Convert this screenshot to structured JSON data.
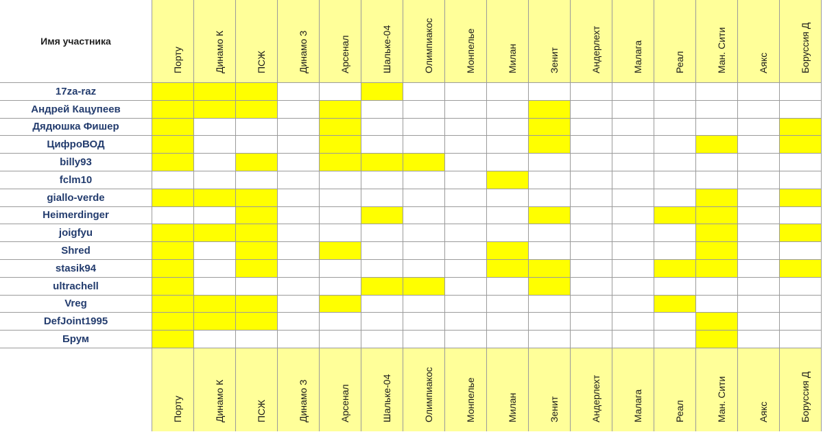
{
  "header": {
    "name_label": "Имя участника"
  },
  "teams": [
    "Порту",
    "Динамо К",
    "ПСЖ",
    "Динамо З",
    "Арсенал",
    "Шальке-04",
    "Олимпиакос",
    "Монпелье",
    "Милан",
    "Зенит",
    "Андерлехт",
    "Малага",
    "Реал",
    "Ман. Сити",
    "Аякс",
    "Боруссия Д"
  ],
  "participants": [
    {
      "name": "17za-raz",
      "picks": [
        1,
        1,
        1,
        0,
        0,
        1,
        0,
        0,
        0,
        0,
        0,
        0,
        0,
        0,
        0,
        0
      ]
    },
    {
      "name": "Андрей Кацупеев",
      "picks": [
        1,
        1,
        1,
        0,
        1,
        0,
        0,
        0,
        0,
        1,
        0,
        0,
        0,
        0,
        0,
        0
      ]
    },
    {
      "name": "Дядюшка Фишер",
      "picks": [
        1,
        0,
        0,
        0,
        1,
        0,
        0,
        0,
        0,
        1,
        0,
        0,
        0,
        0,
        0,
        1
      ]
    },
    {
      "name": "ЦифроВОД",
      "picks": [
        1,
        0,
        0,
        0,
        1,
        0,
        0,
        0,
        0,
        1,
        0,
        0,
        0,
        1,
        0,
        1
      ]
    },
    {
      "name": "billy93",
      "picks": [
        1,
        0,
        1,
        0,
        1,
        1,
        1,
        0,
        0,
        0,
        0,
        0,
        0,
        0,
        0,
        0
      ]
    },
    {
      "name": "fclm10",
      "picks": [
        0,
        0,
        0,
        0,
        0,
        0,
        0,
        0,
        1,
        0,
        0,
        0,
        0,
        0,
        0,
        0
      ]
    },
    {
      "name": "giallo-verde",
      "picks": [
        1,
        1,
        1,
        0,
        0,
        0,
        0,
        0,
        0,
        0,
        0,
        0,
        0,
        1,
        0,
        1
      ]
    },
    {
      "name": "Heimerdinger",
      "picks": [
        0,
        0,
        1,
        0,
        0,
        1,
        0,
        0,
        0,
        1,
        0,
        0,
        1,
        1,
        0,
        0
      ]
    },
    {
      "name": "joigfyu",
      "picks": [
        1,
        1,
        1,
        0,
        0,
        0,
        0,
        0,
        0,
        0,
        0,
        0,
        0,
        1,
        0,
        1
      ]
    },
    {
      "name": "Shred",
      "picks": [
        1,
        0,
        1,
        0,
        1,
        0,
        0,
        0,
        1,
        0,
        0,
        0,
        0,
        1,
        0,
        0
      ]
    },
    {
      "name": "stasik94",
      "picks": [
        1,
        0,
        1,
        0,
        0,
        0,
        0,
        0,
        1,
        1,
        0,
        0,
        1,
        1,
        0,
        1
      ]
    },
    {
      "name": "ultrachell",
      "picks": [
        1,
        0,
        0,
        0,
        0,
        1,
        1,
        0,
        0,
        1,
        0,
        0,
        0,
        0,
        0,
        0
      ]
    },
    {
      "name": "Vreg",
      "picks": [
        1,
        1,
        1,
        0,
        1,
        0,
        0,
        0,
        0,
        0,
        0,
        0,
        1,
        0,
        0,
        0
      ]
    },
    {
      "name": "DefJoint1995",
      "picks": [
        1,
        1,
        1,
        0,
        0,
        0,
        0,
        0,
        0,
        0,
        0,
        0,
        0,
        1,
        0,
        0
      ]
    },
    {
      "name": "Брум",
      "picks": [
        1,
        0,
        0,
        0,
        0,
        0,
        0,
        0,
        0,
        0,
        0,
        0,
        0,
        1,
        0,
        0
      ]
    }
  ],
  "colors": {
    "selected": "#ffff00",
    "header_fill": "#ffff99",
    "name_text": "#233c6e",
    "grid_line": "#9a9a9a"
  }
}
